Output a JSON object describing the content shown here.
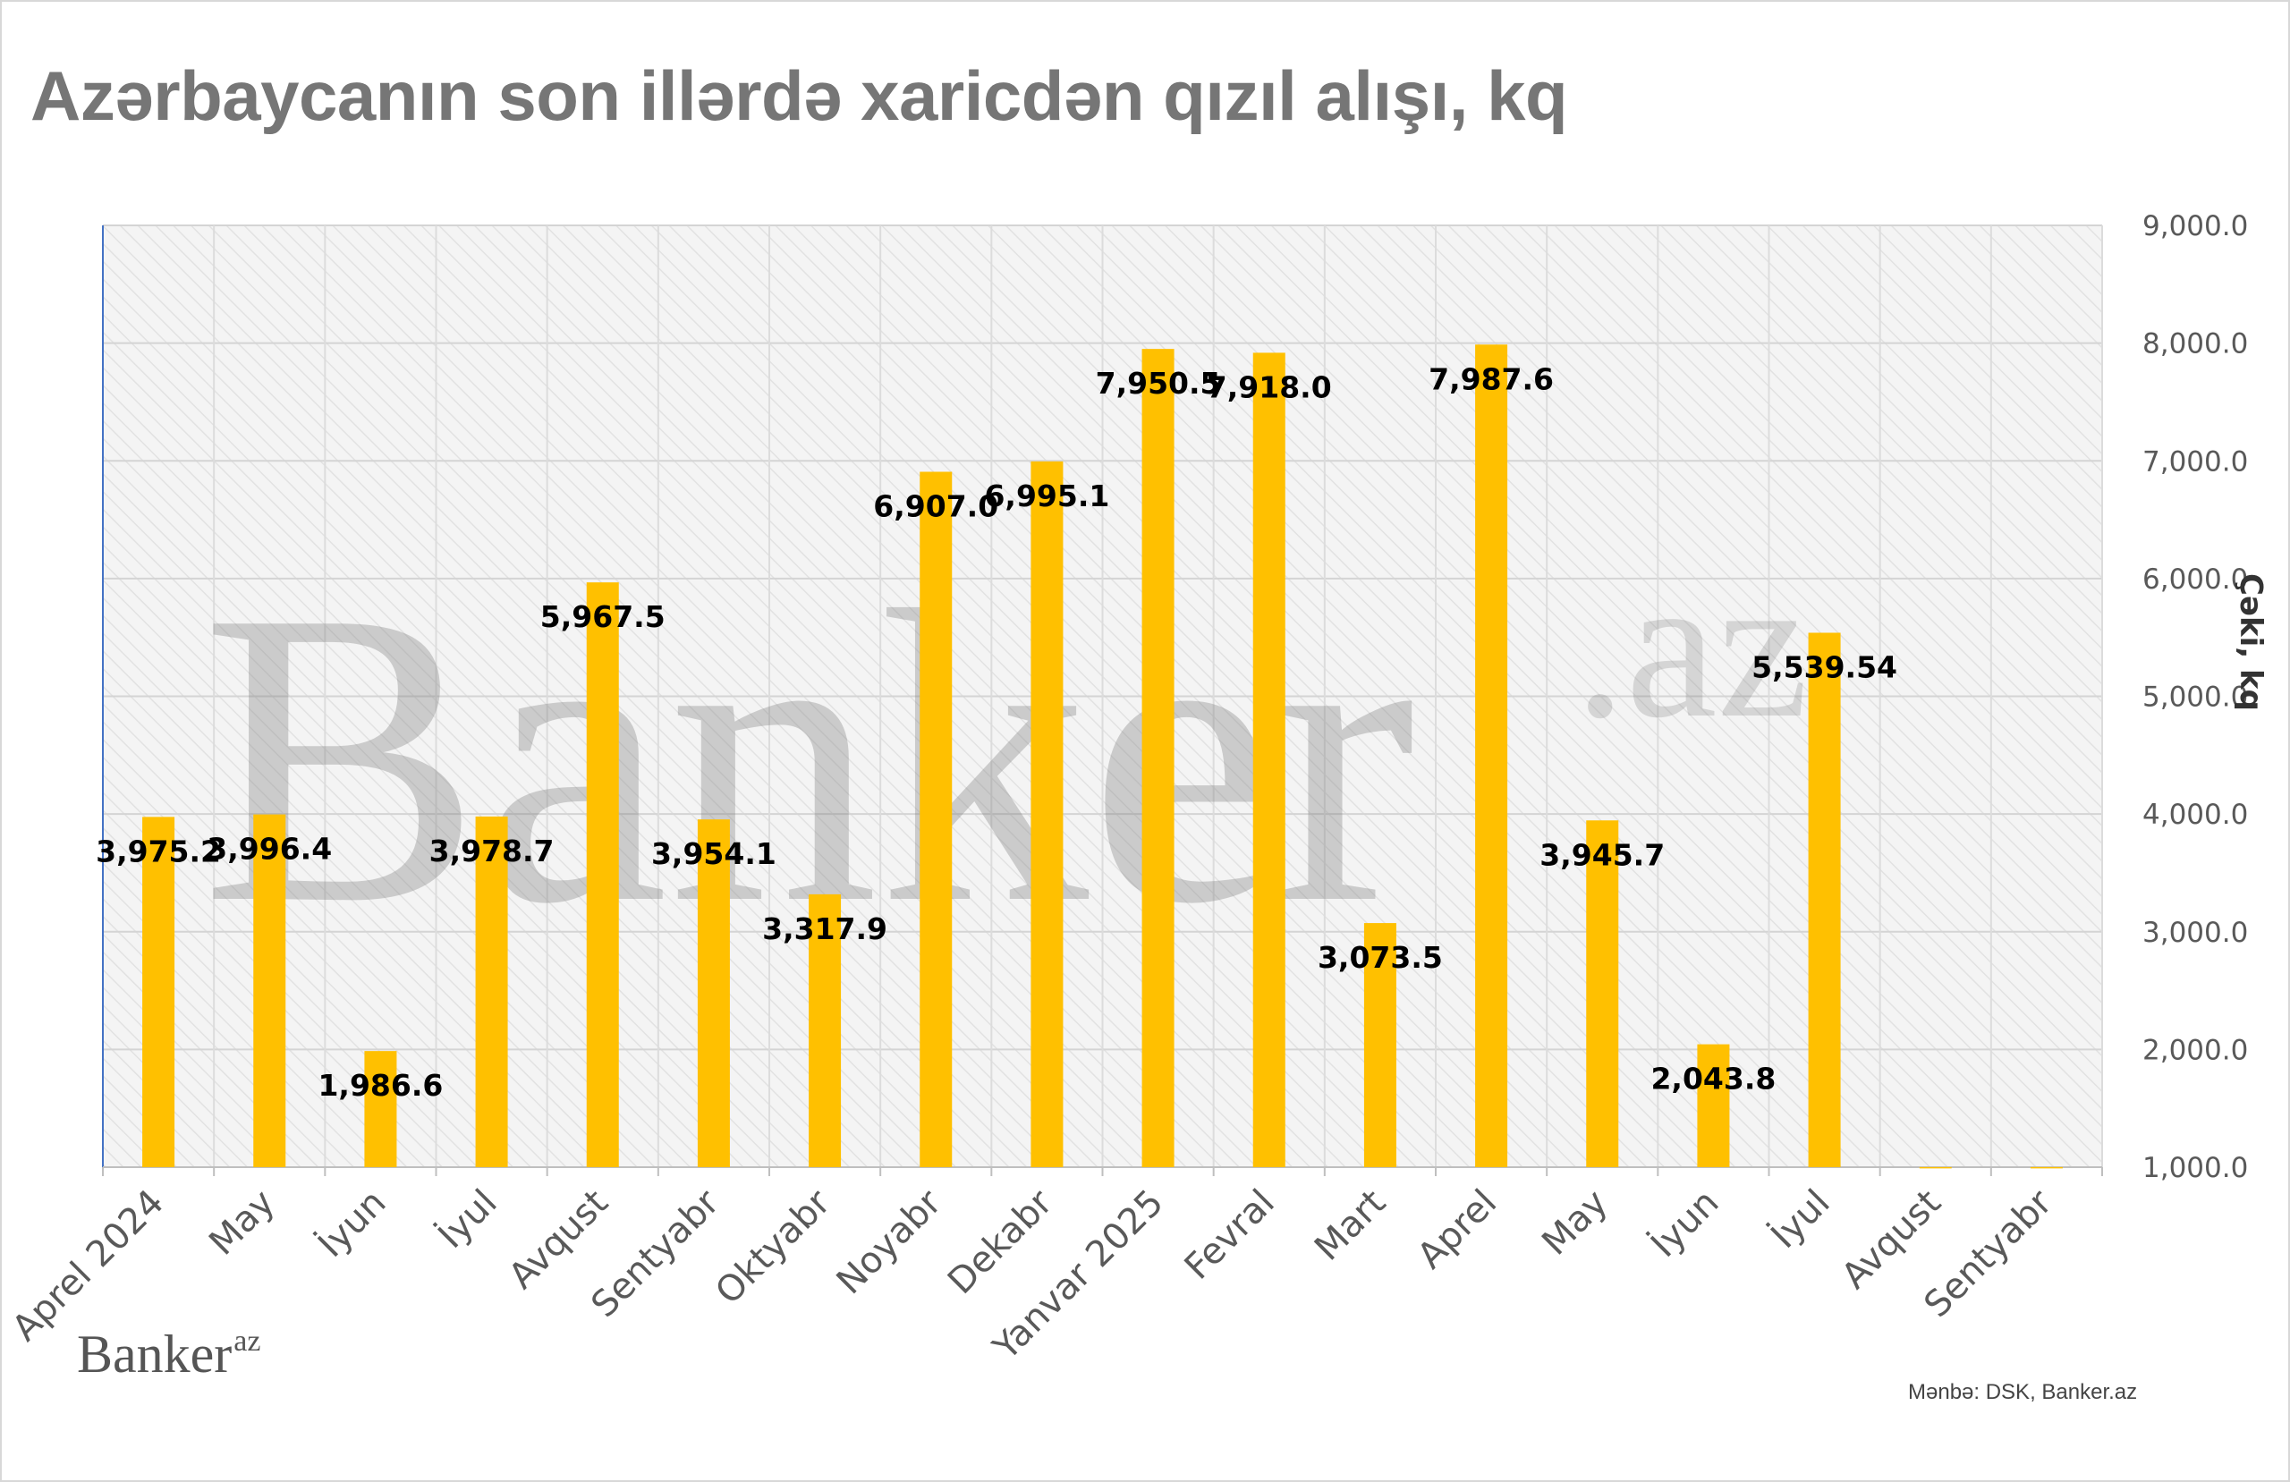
{
  "header": {
    "title": "Azərbaycanın son illərdə xaricdən qızıl alışı, kq"
  },
  "logo": {
    "main": "Banker",
    "suffix": "az"
  },
  "source": "Mənbə: DSK, Banker.az",
  "watermark": "Banker.az",
  "colors": {
    "bar": "#FFC000",
    "title": "#767676",
    "grid": "#d9d9d9",
    "axis": "#4472c4"
  },
  "chart_data": {
    "type": "bar",
    "categories": [
      "Aprel  2024",
      "May",
      "İyun",
      "İyul",
      "Avqust",
      "Sentyabr",
      "Oktyabr",
      "Noyabr",
      "Dekabr",
      "Yanvar 2025",
      "Fevral",
      "Mart",
      "Aprel",
      "May",
      "İyun",
      "İyul",
      "Avqust",
      "Sentyabr"
    ],
    "values": [
      3975.2,
      3996.4,
      1986.6,
      3978.7,
      5967.5,
      3954.1,
      3317.9,
      6907.0,
      6995.1,
      7950.5,
      7918.0,
      3073.5,
      7987.6,
      3945.7,
      2043.8,
      5539.54,
      1001,
      1001
    ],
    "data_labels": [
      "3,975.2",
      "3,996.4",
      "1,986.6",
      "3,978.7",
      "5,967.5",
      "3,954.1",
      "3,317.9",
      "6,907.0",
      "6,995.1",
      "7,950.5",
      "7,918.0",
      "3,073.5",
      "7,987.6",
      "3,945.7",
      "2,043.8",
      "5,539.54",
      "",
      ""
    ],
    "ylabel": "Çəki, kq",
    "ylim": [
      1000,
      9000
    ],
    "yticks": [
      "1,000.0",
      "2,000.0",
      "3,000.0",
      "4,000.0",
      "5,000.0",
      "6,000.0",
      "7,000.0",
      "8,000.0",
      "9,000.0"
    ],
    "y_axis_side": "right",
    "grid": true,
    "legend": "none"
  }
}
